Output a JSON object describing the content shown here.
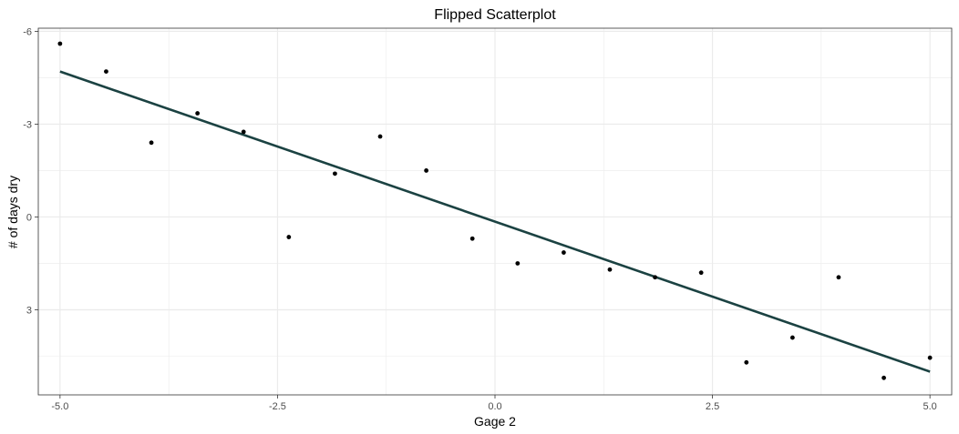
{
  "chart_data": {
    "type": "scatter",
    "title": "Flipped Scatterplot",
    "xlabel": "Gage 2",
    "ylabel": "# of days dry",
    "xlim": [
      -5.25,
      5.25
    ],
    "ylim": [
      -6.1,
      5.75
    ],
    "y_reversed": true,
    "grid": true,
    "legend": "none",
    "x_ticks": [
      -5.0,
      -2.5,
      0.0,
      2.5,
      5.0
    ],
    "x_tick_labels": [
      "-5.0",
      "-2.5",
      "0.0",
      "2.5",
      "5.0"
    ],
    "y_ticks": [
      -6,
      -3,
      0,
      3
    ],
    "y_tick_labels": [
      "-6",
      "-3",
      "0",
      "3"
    ],
    "points": {
      "x": [
        -5.0,
        -4.47,
        -3.95,
        -3.42,
        -2.89,
        -2.37,
        -1.84,
        -1.32,
        -0.79,
        -0.26,
        0.26,
        0.79,
        1.32,
        1.84,
        2.37,
        2.89,
        3.42,
        3.95,
        4.47,
        5.0
      ],
      "y": [
        -5.6,
        -4.7,
        -2.4,
        -3.35,
        -2.75,
        0.65,
        -1.4,
        -2.6,
        -1.5,
        0.7,
        1.5,
        1.15,
        1.7,
        1.95,
        1.8,
        4.7,
        3.9,
        1.95,
        5.2,
        4.55
      ]
    },
    "fit_line": {
      "x": [
        -5.0,
        5.0
      ],
      "y": [
        -4.7,
        5.0
      ]
    },
    "colors": {
      "points": "#000000",
      "fit_line": "#1b4242",
      "grid": "#ebebeb",
      "panel_border": "#333333",
      "tick_label": "#4d4d4d"
    }
  }
}
